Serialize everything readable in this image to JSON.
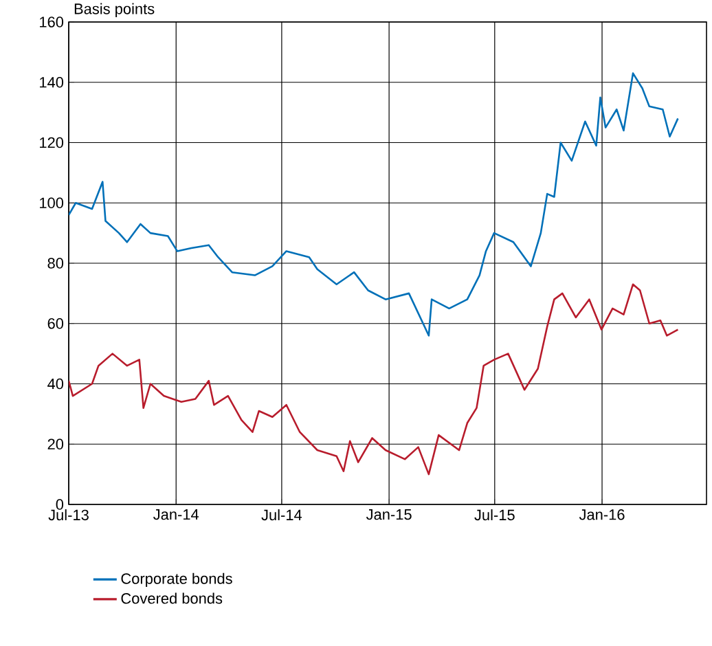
{
  "chart_data": {
    "type": "line",
    "ylabel": "Basis points",
    "xlim": [
      "2013-07-01",
      "2016-06-28"
    ],
    "ylim": [
      0,
      160
    ],
    "yticks": [
      0,
      20,
      40,
      60,
      80,
      100,
      120,
      140,
      160
    ],
    "xticks": [
      {
        "value": "2013-07-01",
        "label": "Jul-13"
      },
      {
        "value": "2014-01-01",
        "label": "Jan-14"
      },
      {
        "value": "2014-07-01",
        "label": "Jul-14"
      },
      {
        "value": "2015-01-01",
        "label": "Jan-15"
      },
      {
        "value": "2015-07-01",
        "label": "Jul-15"
      },
      {
        "value": "2016-01-01",
        "label": "Jan-16"
      }
    ],
    "grid": true,
    "legend": "bottom",
    "marker": "none",
    "line_style": "solid",
    "series": [
      {
        "name": "Corporate bonds",
        "color": "#0070b8",
        "x": [
          "2013-07-01",
          "2013-07-13",
          "2013-08-10",
          "2013-08-28",
          "2013-09-02",
          "2013-09-25",
          "2013-10-09",
          "2013-11-01",
          "2013-11-18",
          "2013-12-18",
          "2014-01-03",
          "2014-01-27",
          "2014-02-26",
          "2014-03-14",
          "2014-04-07",
          "2014-05-16",
          "2014-06-15",
          "2014-07-09",
          "2014-08-17",
          "2014-08-31",
          "2014-10-03",
          "2014-11-02",
          "2014-11-26",
          "2014-12-26",
          "2015-02-04",
          "2015-03-10",
          "2015-03-15",
          "2015-04-14",
          "2015-05-15",
          "2015-06-05",
          "2015-06-16",
          "2015-06-30",
          "2015-08-02",
          "2015-09-01",
          "2015-09-18",
          "2015-09-29",
          "2015-10-11",
          "2015-10-22",
          "2015-11-10",
          "2015-12-03",
          "2015-12-22",
          "2015-12-29",
          "2016-01-07",
          "2016-01-26",
          "2016-02-07",
          "2016-02-23",
          "2016-03-10",
          "2016-03-22",
          "2016-04-14",
          "2016-04-26",
          "2016-05-10"
        ],
        "values": [
          96,
          100,
          98,
          107,
          94,
          90,
          87,
          93,
          90,
          89,
          84,
          85,
          86,
          82,
          77,
          76,
          79,
          84,
          82,
          78,
          73,
          77,
          71,
          68,
          70,
          56,
          68,
          65,
          68,
          76,
          84,
          90,
          87,
          79,
          90,
          103,
          102,
          120,
          114,
          127,
          119,
          135,
          125,
          131,
          124,
          143,
          138,
          132,
          131,
          122,
          128
        ]
      },
      {
        "name": "Covered bonds",
        "color": "#b81c2c",
        "x": [
          "2013-07-01",
          "2013-07-08",
          "2013-08-10",
          "2013-08-21",
          "2013-09-14",
          "2013-10-09",
          "2013-10-30",
          "2013-11-06",
          "2013-11-18",
          "2013-12-11",
          "2014-01-10",
          "2014-02-03",
          "2014-02-26",
          "2014-03-07",
          "2014-03-31",
          "2014-04-23",
          "2014-05-12",
          "2014-05-23",
          "2014-06-15",
          "2014-07-09",
          "2014-08-01",
          "2014-08-31",
          "2014-10-03",
          "2014-10-15",
          "2014-10-26",
          "2014-11-09",
          "2014-12-03",
          "2014-12-26",
          "2015-01-28",
          "2015-02-20",
          "2015-03-10",
          "2015-03-27",
          "2015-05-01",
          "2015-05-15",
          "2015-05-31",
          "2015-06-12",
          "2015-06-30",
          "2015-07-24",
          "2015-08-21",
          "2015-09-13",
          "2015-09-29",
          "2015-10-11",
          "2015-10-25",
          "2015-11-17",
          "2015-12-10",
          "2015-12-31",
          "2016-01-19",
          "2016-02-07",
          "2016-02-23",
          "2016-03-06",
          "2016-03-22",
          "2016-04-10",
          "2016-04-21",
          "2016-05-10"
        ],
        "values": [
          41,
          36,
          40,
          46,
          50,
          46,
          48,
          32,
          40,
          36,
          34,
          35,
          41,
          33,
          36,
          28,
          24,
          31,
          29,
          33,
          24,
          18,
          16,
          11,
          21,
          14,
          22,
          18,
          15,
          19,
          10,
          23,
          18,
          27,
          32,
          46,
          48,
          50,
          38,
          45,
          59,
          68,
          70,
          62,
          68,
          58,
          65,
          63,
          73,
          71,
          60,
          61,
          56,
          58
        ]
      }
    ]
  }
}
